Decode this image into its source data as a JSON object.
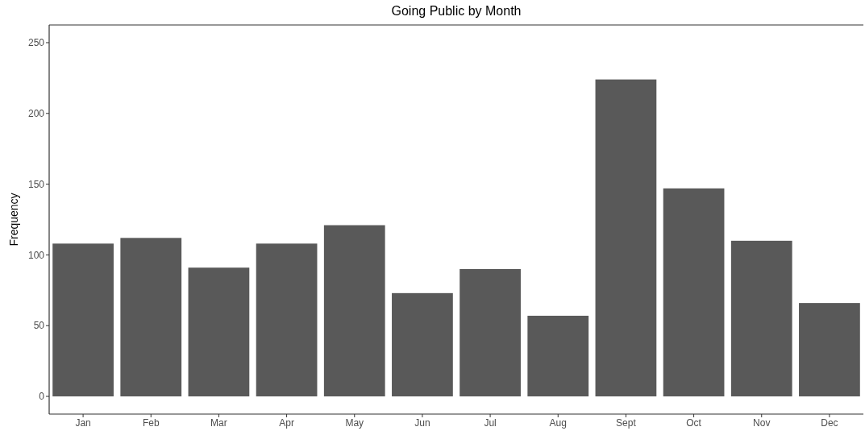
{
  "chart_data": {
    "type": "bar",
    "title": "Going Public by Month",
    "ylabel": "Frequency",
    "categories": [
      "Jan",
      "Feb",
      "Mar",
      "Apr",
      "May",
      "Jun",
      "Jul",
      "Aug",
      "Sept",
      "Oct",
      "Nov",
      "Dec"
    ],
    "values": [
      108,
      112,
      91,
      108,
      121,
      73,
      90,
      57,
      224,
      147,
      110,
      66
    ],
    "color": "#595959",
    "ylim": [
      -12.5,
      262.5
    ],
    "yticks": [
      0,
      50,
      100,
      150,
      200,
      250
    ],
    "grid": false
  }
}
